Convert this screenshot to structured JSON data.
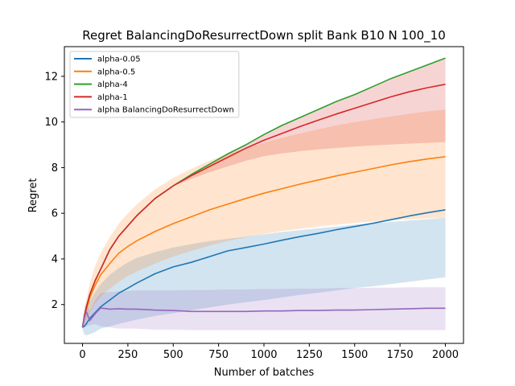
{
  "chart_data": {
    "type": "line",
    "title": "Regret BalancingDoResurrectDown split Bank B10 N 100_10",
    "xlabel": "Number of batches",
    "ylabel": "Regret",
    "xlim": [
      -100,
      2100
    ],
    "ylim": [
      0.3,
      13.3
    ],
    "xticks": [
      0,
      250,
      500,
      750,
      1000,
      1250,
      1500,
      1750,
      2000
    ],
    "yticks": [
      2,
      4,
      6,
      8,
      10,
      12
    ],
    "grid": false,
    "legend_position": "upper-left",
    "x": [
      0,
      10,
      20,
      40,
      70,
      100,
      150,
      200,
      250,
      300,
      400,
      500,
      600,
      700,
      800,
      900,
      1000,
      1100,
      1200,
      1300,
      1400,
      1500,
      1600,
      1700,
      1800,
      1900,
      2000
    ],
    "series": [
      {
        "name": "alpha-0.05",
        "color": "#1f77b4",
        "values": [
          1.0,
          1.05,
          1.15,
          1.4,
          1.65,
          1.9,
          2.2,
          2.5,
          2.72,
          2.95,
          3.35,
          3.65,
          3.85,
          4.1,
          4.35,
          4.5,
          4.65,
          4.82,
          4.98,
          5.12,
          5.28,
          5.42,
          5.56,
          5.72,
          5.88,
          6.02,
          6.15
        ],
        "lower": [
          0.9,
          0.7,
          0.65,
          0.7,
          0.8,
          0.95,
          1.05,
          1.15,
          1.25,
          1.35,
          1.5,
          1.62,
          1.75,
          1.88,
          2.0,
          2.1,
          2.2,
          2.32,
          2.42,
          2.52,
          2.62,
          2.72,
          2.8,
          2.9,
          3.0,
          3.1,
          3.2
        ],
        "upper": [
          1.1,
          1.45,
          1.75,
          2.15,
          2.55,
          2.9,
          3.3,
          3.6,
          3.85,
          4.05,
          4.3,
          4.5,
          4.65,
          4.78,
          4.88,
          4.98,
          5.08,
          5.18,
          5.26,
          5.34,
          5.42,
          5.5,
          5.56,
          5.62,
          5.68,
          5.74,
          5.8
        ]
      },
      {
        "name": "alpha-0.5",
        "color": "#ff7f0e",
        "values": [
          1.0,
          1.4,
          1.75,
          2.3,
          2.85,
          3.3,
          3.8,
          4.25,
          4.55,
          4.8,
          5.2,
          5.55,
          5.85,
          6.15,
          6.4,
          6.65,
          6.88,
          7.08,
          7.28,
          7.46,
          7.64,
          7.8,
          7.96,
          8.12,
          8.26,
          8.38,
          8.48
        ],
        "lower": [
          0.95,
          1.1,
          1.3,
          1.65,
          2.05,
          2.35,
          2.7,
          3.0,
          3.25,
          3.45,
          3.8,
          4.1,
          4.35,
          4.58,
          4.78,
          4.95,
          5.1,
          5.22,
          5.32,
          5.42,
          5.5,
          5.58,
          5.64,
          5.7,
          5.74,
          5.78,
          5.8
        ],
        "upper": [
          1.05,
          1.7,
          2.2,
          2.95,
          3.7,
          4.25,
          4.95,
          5.55,
          6.0,
          6.4,
          7.05,
          7.55,
          7.95,
          8.3,
          8.6,
          8.85,
          9.1,
          9.3,
          9.5,
          9.68,
          9.85,
          10.0,
          10.12,
          10.24,
          10.36,
          10.46,
          10.55
        ]
      },
      {
        "name": "alpha-4",
        "color": "#2ca02c",
        "values": [
          1.0,
          1.5,
          1.85,
          2.45,
          3.05,
          3.55,
          4.4,
          5.0,
          5.45,
          5.9,
          6.65,
          7.2,
          7.7,
          8.15,
          8.6,
          9.0,
          9.45,
          9.85,
          10.2,
          10.55,
          10.9,
          11.2,
          11.55,
          11.9,
          12.2,
          12.5,
          12.8
        ]
      },
      {
        "name": "alpha-1",
        "color": "#d62728",
        "values": [
          1.0,
          1.5,
          1.85,
          2.45,
          3.05,
          3.55,
          4.4,
          5.0,
          5.45,
          5.9,
          6.65,
          7.2,
          7.65,
          8.05,
          8.45,
          8.85,
          9.2,
          9.5,
          9.8,
          10.08,
          10.35,
          10.6,
          10.85,
          11.1,
          11.32,
          11.5,
          11.65
        ],
        "lower": [
          1.0,
          1.5,
          1.85,
          2.45,
          3.05,
          3.55,
          4.4,
          5.0,
          5.45,
          5.9,
          6.65,
          7.2,
          7.5,
          7.8,
          8.05,
          8.3,
          8.5,
          8.62,
          8.72,
          8.8,
          8.86,
          8.92,
          8.97,
          9.01,
          9.05,
          9.08,
          9.12
        ],
        "upper": [
          1.0,
          1.5,
          1.85,
          2.45,
          3.05,
          3.55,
          4.4,
          5.0,
          5.45,
          5.9,
          6.65,
          7.2,
          7.7,
          8.15,
          8.6,
          9.0,
          9.45,
          9.85,
          10.2,
          10.55,
          10.9,
          11.2,
          11.55,
          11.9,
          12.2,
          12.5,
          12.8
        ]
      },
      {
        "name": "alpha BalancingDoResurrectDown",
        "color": "#9467bd",
        "values": [
          1.0,
          1.4,
          1.7,
          1.3,
          1.6,
          1.85,
          1.8,
          1.82,
          1.8,
          1.8,
          1.76,
          1.74,
          1.7,
          1.7,
          1.7,
          1.7,
          1.72,
          1.72,
          1.74,
          1.74,
          1.76,
          1.76,
          1.78,
          1.8,
          1.82,
          1.84,
          1.84
        ],
        "lower": [
          1.0,
          1.0,
          1.05,
          1.1,
          1.15,
          1.05,
          1.0,
          0.95,
          0.95,
          0.95,
          0.9,
          0.9,
          0.88,
          0.88,
          0.88,
          0.88,
          0.88,
          0.88,
          0.88,
          0.88,
          0.88,
          0.88,
          0.88,
          0.88,
          0.88,
          0.88,
          0.88
        ],
        "upper": [
          1.0,
          1.9,
          2.1,
          1.7,
          2.2,
          2.5,
          2.55,
          2.58,
          2.6,
          2.62,
          2.62,
          2.62,
          2.64,
          2.64,
          2.66,
          2.66,
          2.68,
          2.68,
          2.7,
          2.7,
          2.72,
          2.72,
          2.74,
          2.74,
          2.76,
          2.76,
          2.76
        ]
      }
    ]
  }
}
